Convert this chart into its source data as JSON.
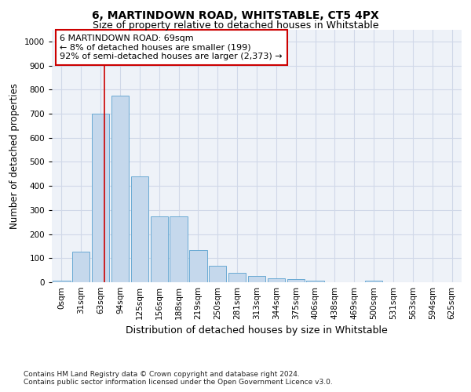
{
  "title": "6, MARTINDOWN ROAD, WHITSTABLE, CT5 4PX",
  "subtitle": "Size of property relative to detached houses in Whitstable",
  "xlabel_bottom": "Distribution of detached houses by size in Whitstable",
  "ylabel": "Number of detached properties",
  "footnote1": "Contains HM Land Registry data © Crown copyright and database right 2024.",
  "footnote2": "Contains public sector information licensed under the Open Government Licence v3.0.",
  "bar_labels": [
    "0sqm",
    "31sqm",
    "63sqm",
    "94sqm",
    "125sqm",
    "156sqm",
    "188sqm",
    "219sqm",
    "250sqm",
    "281sqm",
    "313sqm",
    "344sqm",
    "375sqm",
    "406sqm",
    "438sqm",
    "469sqm",
    "500sqm",
    "531sqm",
    "563sqm",
    "594sqm",
    "625sqm"
  ],
  "bar_values": [
    8,
    128,
    700,
    775,
    440,
    275,
    275,
    135,
    68,
    40,
    25,
    15,
    13,
    5,
    0,
    0,
    8,
    0,
    0,
    0,
    0
  ],
  "bar_color": "#c5d8ec",
  "bar_edge_color": "#6aaad4",
  "grid_color": "#d0d8e8",
  "bg_color": "#eef2f8",
  "vline_x": 2.18,
  "vline_color": "#cc0000",
  "annotation_text": "6 MARTINDOWN ROAD: 69sqm\n← 8% of detached houses are smaller (199)\n92% of semi-detached houses are larger (2,373) →",
  "annotation_box_color": "#ffffff",
  "annotation_box_edge": "#cc0000",
  "ylim": [
    0,
    1050
  ],
  "yticks": [
    0,
    100,
    200,
    300,
    400,
    500,
    600,
    700,
    800,
    900,
    1000
  ],
  "title_fontsize": 10,
  "subtitle_fontsize": 9,
  "tick_fontsize": 7.5,
  "ylabel_fontsize": 8.5,
  "annot_fontsize": 8,
  "xlabel_fontsize": 9
}
